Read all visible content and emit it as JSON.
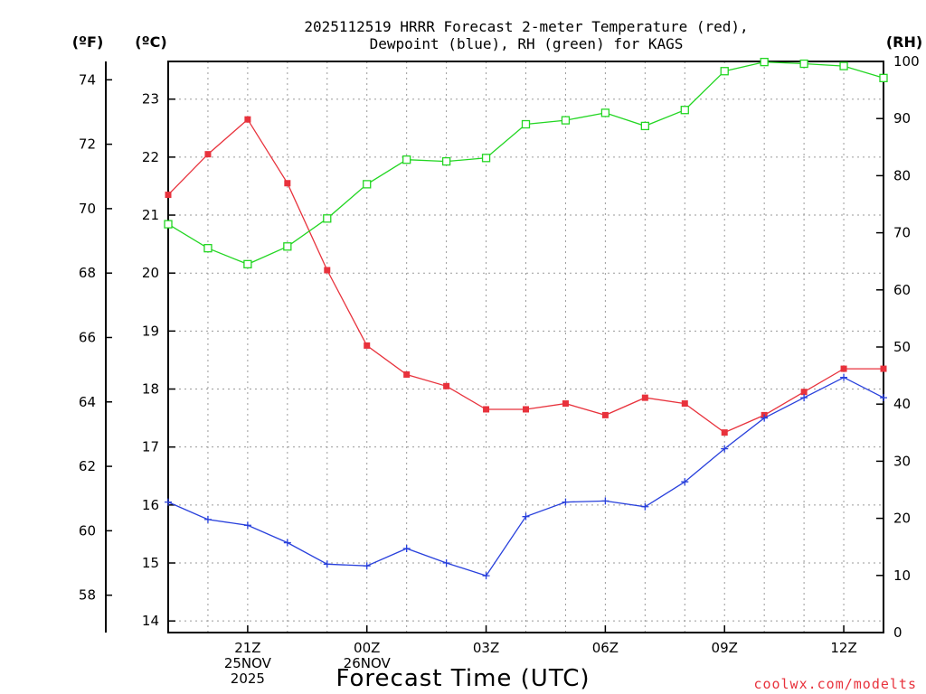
{
  "chart_data": {
    "type": "line",
    "title_lines": [
      "2025112519 HRRR Forecast 2-meter Temperature (red),",
      "Dewpoint (blue), RH (green) for KAGS"
    ],
    "xlabel": "Forecast Time (UTC)",
    "credit": "coolwx.com/modelts",
    "axis_units": {
      "fahrenheit": "(ºF)",
      "celsius": "(ºC)",
      "rh": "(RH)"
    },
    "x_hours": [
      19,
      20,
      21,
      22,
      23,
      24,
      25,
      26,
      27,
      28,
      29,
      30,
      31,
      32,
      33,
      34,
      35,
      36,
      37
    ],
    "x_range": [
      19,
      37
    ],
    "x_ticks": [
      {
        "hour": 21,
        "lines": [
          "21Z",
          "25NOV",
          "2025"
        ]
      },
      {
        "hour": 24,
        "lines": [
          "00Z",
          "26NOV"
        ]
      },
      {
        "hour": 27,
        "lines": [
          "03Z"
        ]
      },
      {
        "hour": 30,
        "lines": [
          "06Z"
        ]
      },
      {
        "hour": 33,
        "lines": [
          "09Z"
        ]
      },
      {
        "hour": 36,
        "lines": [
          "12Z"
        ]
      }
    ],
    "celsius_range": [
      13.8,
      23.65
    ],
    "celsius_ticks": [
      14,
      15,
      16,
      17,
      18,
      19,
      20,
      21,
      22,
      23
    ],
    "fahrenheit_ticks": [
      58,
      60,
      62,
      64,
      66,
      68,
      70,
      72,
      74
    ],
    "rh_range": [
      0,
      100
    ],
    "rh_ticks": [
      0,
      10,
      20,
      30,
      40,
      50,
      60,
      70,
      80,
      90,
      100
    ],
    "series": [
      {
        "name": "Temperature",
        "axis": "celsius",
        "color": "#e8323c",
        "marker": "filled-square",
        "values": [
          21.35,
          22.05,
          22.65,
          21.55,
          20.05,
          18.75,
          18.25,
          18.05,
          17.65,
          17.65,
          17.75,
          17.55,
          17.85,
          17.75,
          17.25,
          17.55,
          17.95,
          18.35,
          18.35
        ]
      },
      {
        "name": "Dewpoint",
        "axis": "celsius",
        "color": "#2840dc",
        "marker": "plus",
        "values": [
          16.05,
          15.75,
          15.65,
          15.35,
          14.98,
          14.95,
          15.25,
          15.0,
          14.78,
          15.8,
          16.05,
          16.07,
          15.97,
          16.4,
          16.97,
          17.5,
          17.85,
          18.2,
          17.85
        ]
      },
      {
        "name": "RH",
        "axis": "rh",
        "color": "#22d622",
        "marker": "open-square",
        "values": [
          71.5,
          67.3,
          64.5,
          67.6,
          72.5,
          78.5,
          82.8,
          82.5,
          83.1,
          89.0,
          89.7,
          91.0,
          88.7,
          91.5,
          98.3,
          99.9,
          99.6,
          99.2,
          97.1
        ]
      }
    ]
  }
}
